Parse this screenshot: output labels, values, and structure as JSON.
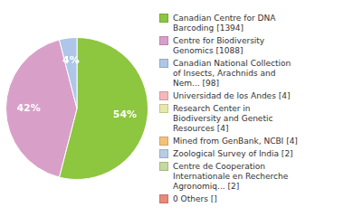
{
  "chart_data": {
    "type": "pie",
    "categories": [
      "Canadian Centre for DNA\nBarcoding [1394]",
      "Centre for Biodiversity\nGenomics [1088]",
      "Canadian National Collection\nof Insects, Arachnids and\nNem... [98]",
      "Universidad de los Andes [4]",
      "Research Center in\nBiodiversity and Genetic\nResources [4]",
      "Mined from GenBank, NCBI [4]",
      "Zoological Survey of India [2]",
      "Centre de Cooperation\nInternationale en Recherche\nAgronomiq... [2]",
      "0 Others []"
    ],
    "values": [
      54,
      42,
      4,
      0,
      0,
      0,
      0,
      0,
      0
    ],
    "value_labels": [
      "54%",
      "42%",
      "4%",
      null,
      null,
      null,
      null,
      null,
      null
    ],
    "colors": [
      "#8dc63f",
      "#d8a0c8",
      "#aec6e8",
      "#f2b8bc",
      "#e8e8a8",
      "#f5c07a",
      "#b8cce4",
      "#c5d8a0",
      "#e8897a"
    ],
    "data_labels": true,
    "legend": "right"
  }
}
